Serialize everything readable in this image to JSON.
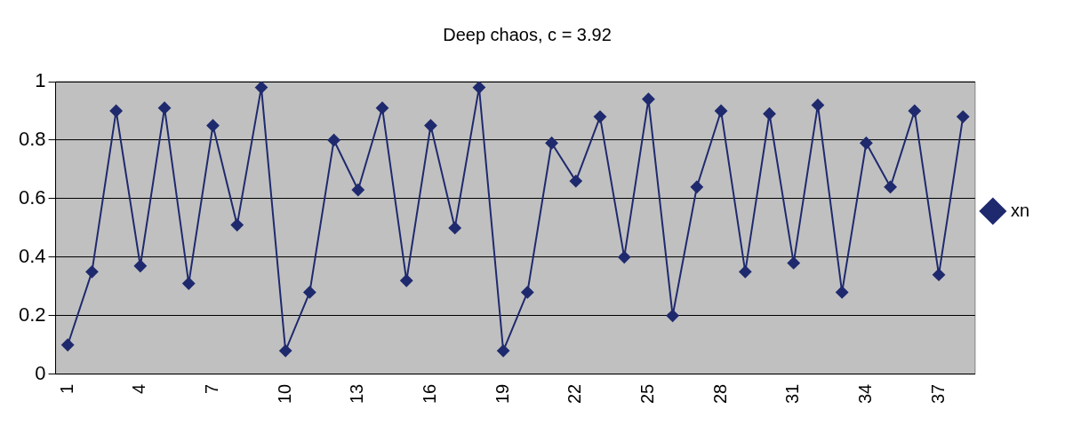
{
  "chart_data": {
    "type": "line",
    "title": "Deep chaos, c = 3.92",
    "categories": [
      "1",
      null,
      null,
      "4",
      null,
      null,
      "7",
      null,
      null,
      "10",
      null,
      null,
      "13",
      null,
      null,
      "16",
      null,
      null,
      "19",
      null,
      null,
      "22",
      null,
      null,
      "25",
      null,
      null,
      "28",
      null,
      null,
      "31",
      null,
      null,
      "34",
      null,
      null,
      "37",
      null
    ],
    "series": [
      {
        "name": "xn",
        "color": "#1f2a6e",
        "values": [
          0.1,
          0.35,
          0.9,
          0.37,
          0.91,
          0.31,
          0.85,
          0.51,
          0.98,
          0.08,
          0.28,
          0.8,
          0.63,
          0.91,
          0.32,
          0.85,
          0.5,
          0.98,
          0.08,
          0.28,
          0.79,
          0.66,
          0.88,
          0.4,
          0.94,
          0.2,
          0.64,
          0.9,
          0.35,
          0.89,
          0.38,
          0.92,
          0.28,
          0.79,
          0.64,
          0.9,
          0.34,
          0.88
        ]
      }
    ],
    "ylim": [
      0,
      1
    ],
    "yticks": [
      0,
      0.2,
      0.4,
      0.6,
      0.8,
      1
    ],
    "grid": "y",
    "legend": "right",
    "marker": "diamond",
    "line_style": "solid"
  }
}
